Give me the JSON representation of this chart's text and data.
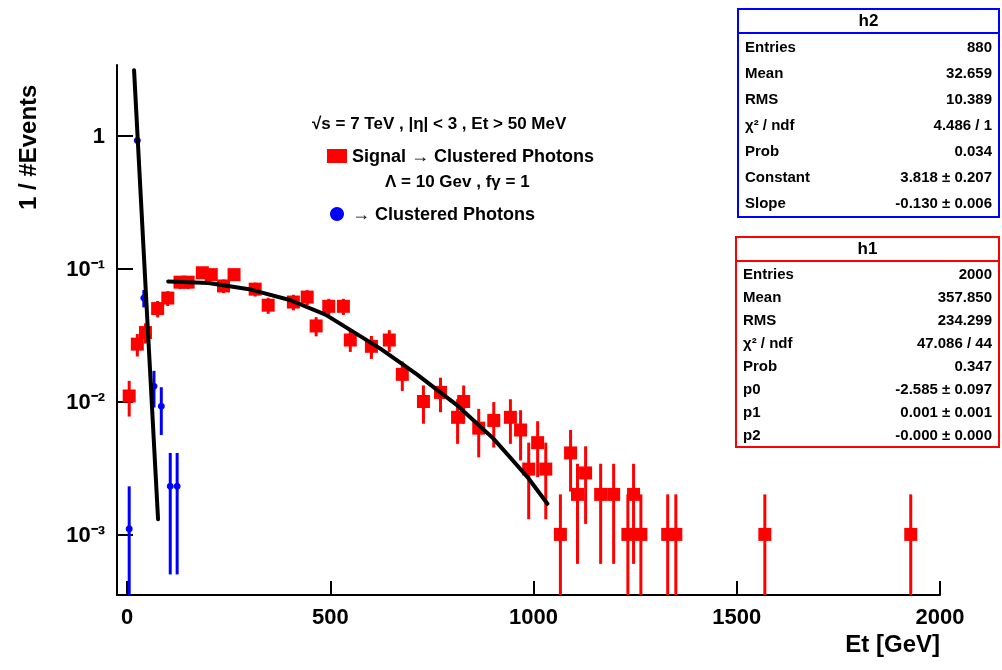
{
  "chart_data": {
    "type": "scatter",
    "xlabel": "Et [GeV]",
    "ylabel": "1 / #Events",
    "legend_title": "√s = 7 TeV , |η| < 3 , Et > 50 MeV",
    "legend": "top",
    "log": "y",
    "grid": false,
    "xlim": [
      -25,
      2000
    ],
    "xticks": [
      0,
      500,
      1000,
      1500,
      2000
    ],
    "ylim": [
      0.00035,
      3.4
    ],
    "yticks": [
      {
        "value": 0.001,
        "label": "10⁻³"
      },
      {
        "value": 0.01,
        "label": "10⁻²"
      },
      {
        "value": 0.1,
        "label": "10⁻¹"
      },
      1
    ],
    "annotations": [
      "Λ = 10 Gev , fγ = 1",
      "h2",
      "Entries",
      "880",
      "Mean",
      "32.659",
      "RMS",
      "10.389",
      "χ² / ndf",
      "4.486 / 1",
      "Prob",
      "0.034",
      "Constant",
      "3.818 ± 0.207",
      "Slope",
      "-0.130 ± 0.006",
      "h1",
      "Entries",
      "2000",
      "Mean",
      "357.850",
      "RMS",
      "234.299",
      "χ² / ndf",
      "47.086 / 44",
      "Prob",
      "0.347",
      "p0",
      "-2.585 ± 0.097",
      "p1",
      "0.001 ± 0.001",
      "p2",
      "-0.000 ± 0.000"
    ],
    "series": [
      {
        "name": "Signal → Clustered Photons",
        "color": "#ff0000",
        "marker": "square",
        "x": [
          5,
          25,
          45,
          75,
          100,
          130,
          150,
          185,
          207,
          237,
          263,
          315,
          347,
          409,
          443,
          465,
          496,
          532,
          549,
          601,
          645,
          677,
          729,
          771,
          813,
          828,
          865,
          902,
          943,
          968,
          988,
          1010,
          1030,
          1066,
          1091,
          1108,
          1128,
          1165,
          1197,
          1232,
          1246,
          1264,
          1330,
          1350,
          1569,
          1928
        ],
        "values": [
          0.011,
          0.027,
          0.033,
          0.05,
          0.06,
          0.079,
          0.079,
          0.093,
          0.09,
          0.074,
          0.09,
          0.07,
          0.053,
          0.056,
          0.061,
          0.037,
          0.052,
          0.052,
          0.029,
          0.026,
          0.029,
          0.016,
          0.01,
          0.0117,
          0.0076,
          0.01,
          0.0063,
          0.0072,
          0.0076,
          0.0061,
          0.0031,
          0.0049,
          0.0031,
          0.001,
          0.0041,
          0.002,
          0.0029,
          0.002,
          0.002,
          0.001,
          0.002,
          0.001,
          0.001,
          0.001,
          0.001,
          0.001
        ],
        "errors": [
          0.0033,
          0.0052,
          0.0057,
          0.0071,
          0.0077,
          0.0089,
          0.0089,
          0.0096,
          0.0095,
          0.0086,
          0.0095,
          0.0084,
          0.0073,
          0.0075,
          0.0078,
          0.0061,
          0.0072,
          0.0072,
          0.0054,
          0.0051,
          0.0054,
          0.004,
          0.0032,
          0.0034,
          0.0028,
          0.0032,
          0.0025,
          0.0027,
          0.0028,
          0.0025,
          0.0018,
          0.0022,
          0.0018,
          [
            0.00035,
            0.002
          ],
          0.002,
          0.0014,
          0.0017,
          0.0014,
          0.0014,
          [
            0.00035,
            0.002
          ],
          0.0014,
          [
            0.00035,
            0.002
          ],
          [
            0.00035,
            0.002
          ],
          [
            0.00035,
            0.002
          ],
          [
            0.00035,
            0.002
          ],
          [
            0.00035,
            0.002
          ]
        ]
      },
      {
        "name": "→ Clustered Photons",
        "color": "#0000ff",
        "marker": "circle",
        "x": [
          5,
          25,
          41,
          66,
          84,
          106,
          123
        ],
        "values": [
          0.0011,
          0.92,
          0.06,
          0.013,
          0.0092,
          0.0023,
          0.0023
        ],
        "errors": [
          [
            0.00035,
            0.0023
          ],
          0.036,
          0.009,
          0.004,
          0.0036,
          0.0018,
          0.0018
        ]
      },
      {
        "type": "line",
        "color": "#000000",
        "marker": "none",
        "line_style": "solid",
        "x": [
          17,
          47,
          76
        ],
        "values": [
          3.1,
          0.058,
          0.0013
        ]
      },
      {
        "type": "line",
        "color": "#000000",
        "marker": "none",
        "line_style": "solid",
        "x": [
          101,
          200,
          300,
          400,
          488,
          623,
          713,
          813,
          900,
          985,
          1034
        ],
        "values": [
          0.08,
          0.078,
          0.07,
          0.058,
          0.045,
          0.025,
          0.016,
          0.0093,
          0.0053,
          0.0027,
          0.0017
        ]
      }
    ]
  }
}
